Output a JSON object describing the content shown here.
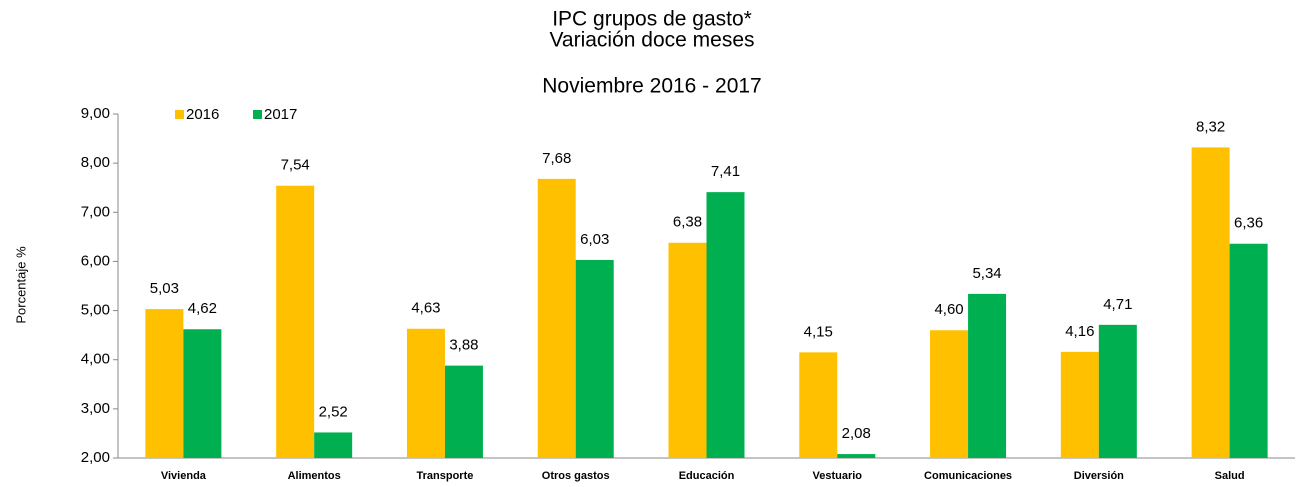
{
  "chart_data": {
    "type": "bar",
    "title": [
      "IPC grupos de gasto*",
      "Variación doce meses",
      "Noviembre 2016 - 2017"
    ],
    "y_label": "Porcentaje %",
    "categories": [
      "Vivienda",
      "Alimentos",
      "Transporte",
      "Otros gastos",
      "Educación",
      "Vestuario",
      "Comunicaciones",
      "Diversión",
      "Salud"
    ],
    "series": [
      {
        "name": "2016",
        "color": "#FFC000",
        "values": [
          5.03,
          7.54,
          4.63,
          7.68,
          6.38,
          4.15,
          4.6,
          4.16,
          8.32
        ],
        "value_labels": [
          "5,03",
          "7,54",
          "4,63",
          "7,68",
          "6,38",
          "4,15",
          "4,60",
          "4,16",
          "8,32"
        ]
      },
      {
        "name": "2017",
        "color": "#00B050",
        "values": [
          4.62,
          2.52,
          3.88,
          6.03,
          7.41,
          2.08,
          5.34,
          4.71,
          6.36
        ],
        "value_labels": [
          "4,62",
          "2,52",
          "3,88",
          "6,03",
          "7,41",
          "2,08",
          "5,34",
          "4,71",
          "6,36"
        ]
      }
    ],
    "ylim": [
      2,
      9
    ],
    "yticks": [
      {
        "value": 2,
        "label": "2,00"
      },
      {
        "value": 3,
        "label": "3,00"
      },
      {
        "value": 4,
        "label": "4,00"
      },
      {
        "value": 5,
        "label": "5,00"
      },
      {
        "value": 6,
        "label": "6,00"
      },
      {
        "value": 7,
        "label": "7,00"
      },
      {
        "value": 8,
        "label": "8,00"
      },
      {
        "value": 9,
        "label": "9,00"
      }
    ],
    "legend": "top-left"
  }
}
